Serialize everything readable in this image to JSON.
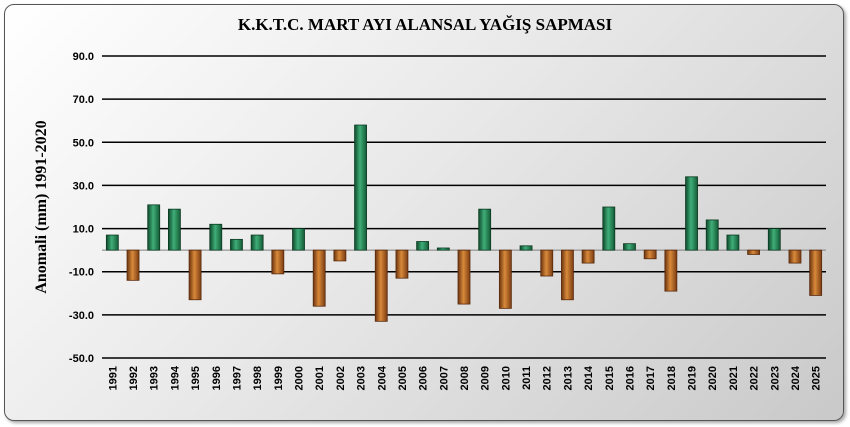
{
  "chart_data": {
    "type": "bar",
    "title": "K.K.T.C. MART AYI ALANSAL YAĞIŞ SAPMASI",
    "xlabel": "",
    "ylabel": "Anomali (mm) 1991-2020",
    "ylim": [
      -50,
      90
    ],
    "yticks": [
      "90.0",
      "70.0",
      "50.0",
      "30.0",
      "10.0",
      "-10.0",
      "-30.0",
      "-50.0"
    ],
    "ytick_values": [
      90,
      70,
      50,
      30,
      10,
      -10,
      -30,
      -50
    ],
    "grid": true,
    "legend": "none",
    "categories": [
      "1991",
      "1992",
      "1993",
      "1994",
      "1995",
      "1996",
      "1997",
      "1998",
      "1999",
      "2000",
      "2001",
      "2002",
      "2003",
      "2004",
      "2005",
      "2006",
      "2007",
      "2008",
      "2009",
      "2010",
      "2011",
      "2012",
      "2013",
      "2014",
      "2015",
      "2016",
      "2017",
      "2018",
      "2019",
      "2020",
      "2021",
      "2022",
      "2023",
      "2024",
      "2025"
    ],
    "values": [
      7,
      -14,
      21,
      19,
      -23,
      12,
      5,
      7,
      -11,
      10,
      -26,
      -5,
      58,
      -33,
      -13,
      4,
      1,
      -25,
      19,
      -27,
      2,
      -12,
      -23,
      -6,
      20,
      3,
      -4,
      -19,
      34,
      14,
      7,
      -2,
      10,
      -6,
      -21
    ],
    "colors": {
      "positive": "#2e8b57",
      "negative": "#b5651d",
      "gridline": "#000000"
    }
  }
}
